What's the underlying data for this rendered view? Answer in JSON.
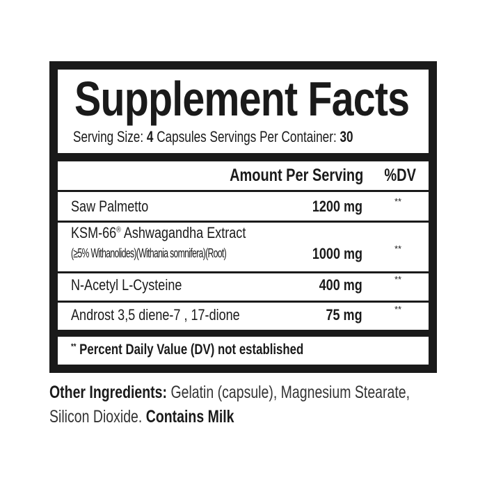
{
  "title": "Supplement Facts",
  "serving": {
    "size_label": "Serving Size:",
    "size_value": "4",
    "size_unit": "Capsules",
    "per_container_label": "Servings Per Container:",
    "per_container_value": "30"
  },
  "header": {
    "amount": "Amount Per Serving",
    "dv": "%DV"
  },
  "rows": [
    {
      "name": "Saw Palmetto",
      "amount": "1200 mg",
      "dv": "**"
    },
    {
      "name": "KSM-66",
      "reg": "®",
      "name_rest": "Ashwagandha Extract",
      "sub": "(≥5% Withanolides)(Withania somnifera)(Root)",
      "amount": "1000 mg",
      "dv": "**"
    },
    {
      "name": "N-Acetyl L-Cysteine",
      "amount": "400 mg",
      "dv": "**"
    },
    {
      "name": "Androst 3,5 diene-7 , 17-dione",
      "amount": "75 mg",
      "dv": "**"
    }
  ],
  "footnote": {
    "stars": "**",
    "text": "Percent Daily Value (DV) not established"
  },
  "other": {
    "label": "Other Ingredients:",
    "list_line1": "Gelatin (capsule), Magnesium Stearate,",
    "list_line2": "Silicon Dioxide.",
    "allergen": "Contains Milk"
  }
}
